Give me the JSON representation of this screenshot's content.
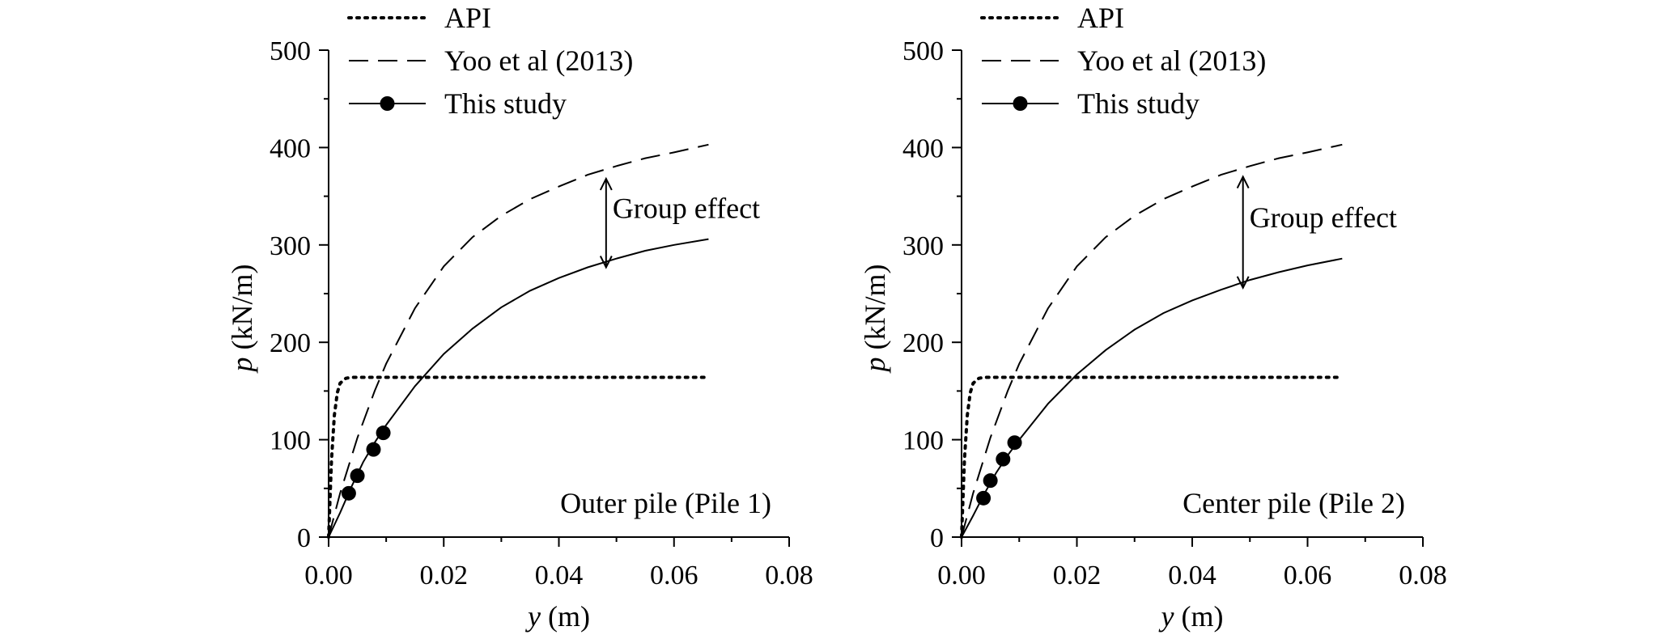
{
  "chart_data": [
    {
      "type": "line",
      "panel_label": "Outer pile (Pile 1)",
      "xlabel": {
        "var": "y",
        "unit": " (m)"
      },
      "ylabel": {
        "var": "p",
        "unit": " (kN/m)"
      },
      "xlim": [
        0,
        0.08
      ],
      "ylim": [
        0,
        500
      ],
      "xticks": [
        "0.00",
        "0.02",
        "0.04",
        "0.06",
        "0.08"
      ],
      "yticks": [
        "0",
        "100",
        "200",
        "300",
        "400",
        "500"
      ],
      "legend_placement": "top-left",
      "annotation": {
        "text": "Group effect",
        "x": 0.0482,
        "y_top": 368,
        "y_bottom": 277
      },
      "series": [
        {
          "name": "API",
          "style": "dotted",
          "x": [
            0,
            0.0005,
            0.001,
            0.0015,
            0.002,
            0.003,
            0.004,
            0.006,
            0.01,
            0.02,
            0.04,
            0.066
          ],
          "y": [
            0,
            80,
            125,
            148,
            158,
            163,
            164,
            164,
            164,
            164,
            164,
            164
          ]
        },
        {
          "name": "Yoo et al (2013)",
          "style": "dashed",
          "x": [
            0,
            0.002,
            0.005,
            0.008,
            0.01,
            0.015,
            0.02,
            0.025,
            0.03,
            0.035,
            0.04,
            0.045,
            0.05,
            0.055,
            0.06,
            0.066
          ],
          "y": [
            0,
            45,
            102,
            150,
            178,
            235,
            278,
            308,
            330,
            347,
            360,
            372,
            381,
            389,
            395,
            403
          ]
        },
        {
          "name": "This study",
          "style": "solid",
          "x": [
            0,
            0.002,
            0.004,
            0.006,
            0.008,
            0.01,
            0.015,
            0.02,
            0.025,
            0.03,
            0.035,
            0.04,
            0.045,
            0.05,
            0.055,
            0.06,
            0.066
          ],
          "y": [
            0,
            25,
            52,
            77,
            97,
            115,
            155,
            188,
            214,
            236,
            253,
            266,
            277,
            286,
            294,
            300,
            306
          ]
        },
        {
          "name": "This study (points)",
          "style": "markers",
          "x": [
            0.0035,
            0.005,
            0.0078,
            0.0095
          ],
          "y": [
            45,
            63,
            90,
            107
          ]
        }
      ]
    },
    {
      "type": "line",
      "panel_label": "Center pile (Pile 2)",
      "xlabel": {
        "var": "y",
        "unit": " (m)"
      },
      "ylabel": {
        "var": "p",
        "unit": " (kN/m)"
      },
      "xlim": [
        0,
        0.08
      ],
      "ylim": [
        0,
        500
      ],
      "xticks": [
        "0.00",
        "0.02",
        "0.04",
        "0.06",
        "0.08"
      ],
      "yticks": [
        "0",
        "100",
        "200",
        "300",
        "400",
        "500"
      ],
      "legend_placement": "top-left",
      "annotation": {
        "text": "Group effect",
        "x": 0.0488,
        "y_top": 370,
        "y_bottom": 256
      },
      "series": [
        {
          "name": "API",
          "style": "dotted",
          "x": [
            0,
            0.0005,
            0.001,
            0.0015,
            0.002,
            0.003,
            0.004,
            0.006,
            0.01,
            0.02,
            0.04,
            0.066
          ],
          "y": [
            0,
            80,
            125,
            148,
            158,
            163,
            164,
            164,
            164,
            164,
            164,
            164
          ]
        },
        {
          "name": "Yoo et al (2013)",
          "style": "dashed",
          "x": [
            0,
            0.002,
            0.005,
            0.008,
            0.01,
            0.015,
            0.02,
            0.025,
            0.03,
            0.035,
            0.04,
            0.045,
            0.05,
            0.055,
            0.06,
            0.066
          ],
          "y": [
            0,
            45,
            102,
            150,
            178,
            235,
            278,
            308,
            330,
            347,
            360,
            372,
            381,
            389,
            395,
            403
          ]
        },
        {
          "name": "This study",
          "style": "solid",
          "x": [
            0,
            0.002,
            0.004,
            0.006,
            0.008,
            0.01,
            0.015,
            0.02,
            0.025,
            0.03,
            0.035,
            0.04,
            0.045,
            0.05,
            0.055,
            0.06,
            0.066
          ],
          "y": [
            0,
            22,
            45,
            66,
            84,
            100,
            137,
            167,
            192,
            213,
            230,
            243,
            254,
            264,
            272,
            279,
            286
          ]
        },
        {
          "name": "This study (points)",
          "style": "markers",
          "x": [
            0.0038,
            0.005,
            0.0072,
            0.0092
          ],
          "y": [
            40,
            58,
            80,
            97
          ]
        }
      ]
    }
  ]
}
